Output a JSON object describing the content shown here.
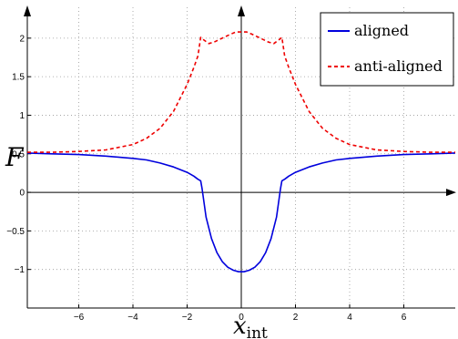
{
  "chart_data": {
    "type": "line",
    "title": "",
    "xlabel": "x",
    "xlabel_sub": "int",
    "ylabel": "F",
    "xlim": [
      -7.9,
      7.9
    ],
    "ylim": [
      -1.5,
      2.4
    ],
    "xticks": [
      -6,
      -4,
      -2,
      0,
      2,
      4,
      6
    ],
    "xtick_labels": [
      "−6",
      "−4",
      "−2",
      "0",
      "2",
      "4",
      "6"
    ],
    "yticks": [
      -1,
      -0.5,
      0,
      0.5,
      1,
      1.5,
      2
    ],
    "ytick_labels": [
      "−1",
      "−0.5",
      "0",
      "0.5",
      "1",
      "1.5",
      "2"
    ],
    "grid": true,
    "legend_position": "top-right",
    "series": [
      {
        "name": "aligned",
        "color": "#0000dd",
        "style": "solid",
        "x": [
          -7.9,
          -7,
          -6,
          -5,
          -4,
          -3.5,
          -3,
          -2.5,
          -2,
          -1.75,
          -1.6,
          -1.5,
          -1.45,
          -1.3,
          -1.1,
          -0.9,
          -0.7,
          -0.5,
          -0.3,
          -0.1,
          0,
          0.1,
          0.3,
          0.5,
          0.7,
          0.9,
          1.1,
          1.3,
          1.45,
          1.5,
          1.6,
          1.75,
          2,
          2.5,
          3,
          3.5,
          4,
          5,
          6,
          7,
          7.9
        ],
        "y": [
          0.51,
          0.5,
          0.49,
          0.47,
          0.44,
          0.42,
          0.38,
          0.33,
          0.26,
          0.21,
          0.17,
          0.15,
          0.05,
          -0.32,
          -0.6,
          -0.78,
          -0.9,
          -0.97,
          -1.01,
          -1.03,
          -1.03,
          -1.03,
          -1.01,
          -0.97,
          -0.9,
          -0.78,
          -0.6,
          -0.32,
          0.05,
          0.15,
          0.17,
          0.21,
          0.26,
          0.33,
          0.38,
          0.42,
          0.44,
          0.47,
          0.49,
          0.5,
          0.51
        ]
      },
      {
        "name": "anti-aligned",
        "color": "#ee0000",
        "style": "dashed",
        "x": [
          -7.9,
          -7,
          -6,
          -5,
          -4,
          -3.5,
          -3,
          -2.5,
          -2,
          -1.75,
          -1.6,
          -1.5,
          -1.4,
          -1.2,
          -1,
          -0.7,
          -0.4,
          -0.2,
          0,
          0.2,
          0.4,
          0.7,
          1,
          1.2,
          1.4,
          1.5,
          1.6,
          1.75,
          2,
          2.5,
          3,
          3.5,
          4,
          5,
          6,
          7,
          7.9
        ],
        "y": [
          0.52,
          0.52,
          0.53,
          0.55,
          0.62,
          0.7,
          0.83,
          1.05,
          1.4,
          1.62,
          1.77,
          2.01,
          1.98,
          1.93,
          1.95,
          2.0,
          2.05,
          2.08,
          2.08,
          2.08,
          2.05,
          2.0,
          1.95,
          1.93,
          1.98,
          2.01,
          1.77,
          1.62,
          1.4,
          1.05,
          0.83,
          0.7,
          0.62,
          0.55,
          0.53,
          0.52,
          0.52
        ]
      }
    ]
  }
}
